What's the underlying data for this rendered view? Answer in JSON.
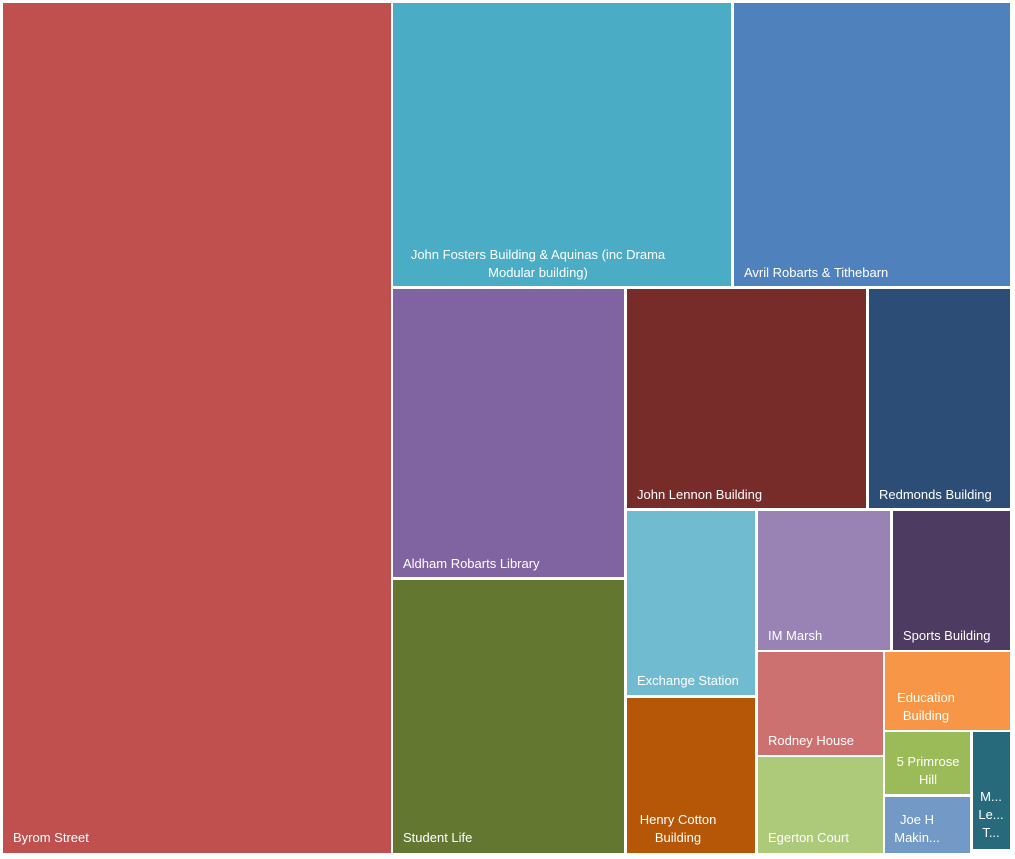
{
  "chart_data": {
    "type": "treemap",
    "items": [
      {
        "name": "Byrom Street",
        "label": "Byrom Street",
        "color": "#c0504d",
        "value": 32.89
      },
      {
        "name": "John Fosters Building & Aquinas (inc Drama Modular building)",
        "label": "John Fosters Building & Aquinas (inc Drama\nModular building)",
        "color": "#4bacc6",
        "value": 9.65
      },
      {
        "name": "Avril Robarts & Tithebarn",
        "label": "Avril Robarts & Tithebarn",
        "color": "#4f81bd",
        "value": 7.83
      },
      {
        "name": "Aldham Robarts Library",
        "label": "Aldham Robarts Library",
        "color": "#8064a2",
        "value": 6.64
      },
      {
        "name": "Student Life",
        "label": "Student Life",
        "color": "#647731",
        "value": 6.25
      },
      {
        "name": "John Lennon Building",
        "label": "John Lennon Building",
        "color": "#772c2a",
        "value": 5.41
      },
      {
        "name": "Redmonds Building",
        "label": "Redmonds Building",
        "color": "#2c4d75",
        "value": 2.77
      },
      {
        "name": "Exchange Station",
        "label": "Exchange Station",
        "color": "#70bbd0",
        "value": 2.64
      },
      {
        "name": "Henry Cotton Building",
        "label": "Henry Cotton\nBuilding",
        "color": "#b65708",
        "value": 2.25
      },
      {
        "name": "IM Marsh",
        "label": "IM Marsh",
        "color": "#9983b5",
        "value": 1.91
      },
      {
        "name": "Sports Building",
        "label": "Sports Building",
        "color": "#4d3b62",
        "value": 1.67
      },
      {
        "name": "Rodney House",
        "label": "Rodney House",
        "color": "#cd7070",
        "value": 1.49
      },
      {
        "name": "Egerton Court",
        "label": "Egerton Court",
        "color": "#adc97a",
        "value": 1.17
      },
      {
        "name": "Education Building",
        "label": "Education\nBuilding",
        "color": "#f79646",
        "value": 1.03
      },
      {
        "name": "5 Primrose Hill",
        "label": "5 Primrose\nHill",
        "color": "#9bbb59",
        "value": 0.69
      },
      {
        "name": "Joe H Makin...",
        "label": "Joe H\nMakin...",
        "color": "#7399c6",
        "value": 0.62
      },
      {
        "name": "M... Le... T...",
        "label": "M...\nLe...\nT...",
        "color": "#276a7c",
        "value": 0.44
      }
    ]
  }
}
